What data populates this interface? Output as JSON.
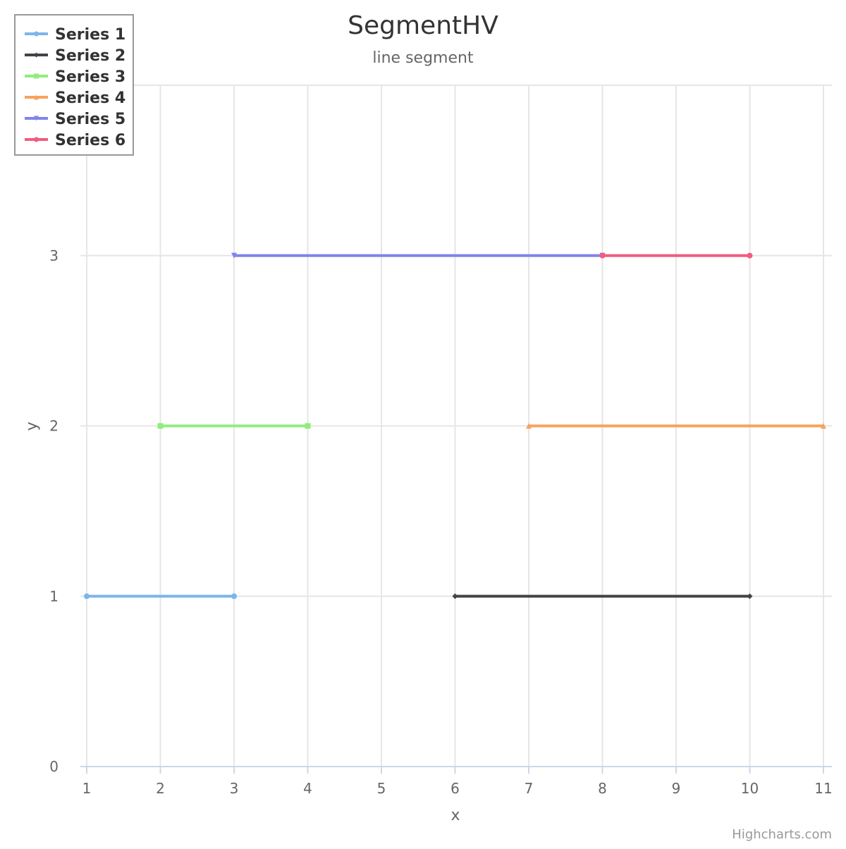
{
  "chart_data": {
    "type": "line",
    "title": "SegmentHV",
    "subtitle": "line segment",
    "xlabel": "x",
    "ylabel": "y",
    "xlim": [
      1,
      11
    ],
    "ylim": [
      0,
      4
    ],
    "x_ticks": [
      1,
      2,
      3,
      4,
      5,
      6,
      7,
      8,
      9,
      10,
      11
    ],
    "y_ticks": [
      0,
      1,
      2,
      3,
      4
    ],
    "grid": true,
    "legend_position": "top-left",
    "series": [
      {
        "name": "Series 1",
        "color": "#7cb5ec",
        "marker": "circle",
        "x": [
          1,
          3
        ],
        "y": [
          1,
          1
        ]
      },
      {
        "name": "Series 2",
        "color": "#434348",
        "marker": "diamond",
        "x": [
          6,
          10
        ],
        "y": [
          1,
          1
        ]
      },
      {
        "name": "Series 3",
        "color": "#90ed7d",
        "marker": "square",
        "x": [
          2,
          4
        ],
        "y": [
          2,
          2
        ]
      },
      {
        "name": "Series 4",
        "color": "#f7a35c",
        "marker": "triangle",
        "x": [
          7,
          11
        ],
        "y": [
          2,
          2
        ]
      },
      {
        "name": "Series 5",
        "color": "#8085e9",
        "marker": "triangle-down",
        "x": [
          3,
          8
        ],
        "y": [
          3,
          3
        ]
      },
      {
        "name": "Series 6",
        "color": "#f15c80",
        "marker": "circle",
        "x": [
          8,
          10
        ],
        "y": [
          3,
          3
        ]
      }
    ]
  },
  "credits": "Highcharts.com"
}
